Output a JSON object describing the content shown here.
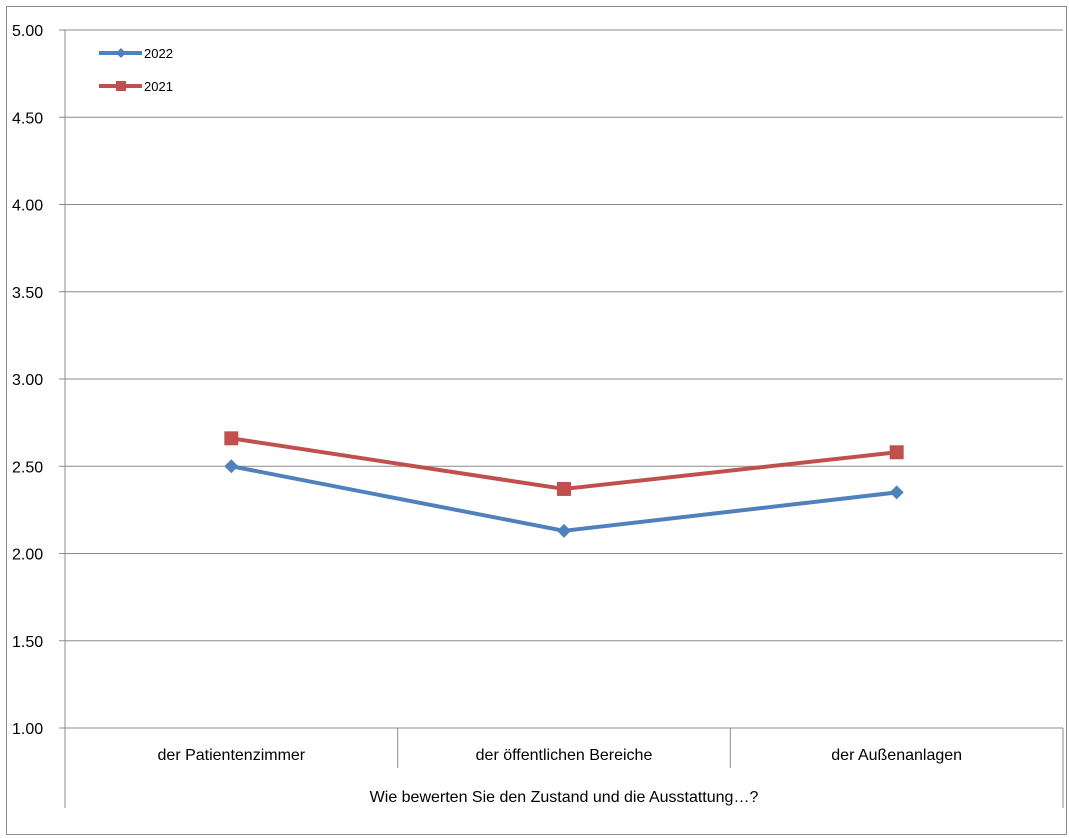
{
  "chart_data": {
    "type": "line",
    "categories": [
      "der Patientenzimmer",
      "der öffentlichen Bereiche",
      "der Außenanlagen"
    ],
    "group_label": "Wie bewerten Sie den Zustand und die Ausstattung…?",
    "ylim": [
      1.0,
      5.0
    ],
    "yticks": [
      "1.00",
      "1.50",
      "2.00",
      "2.50",
      "3.00",
      "3.50",
      "4.00",
      "4.50",
      "5.00"
    ],
    "grid": true,
    "legend_position": "top-left",
    "series": [
      {
        "name": "2022",
        "values": [
          2.5,
          2.13,
          2.35
        ],
        "color": "#4F81BD",
        "marker": "diamond"
      },
      {
        "name": "2021",
        "values": [
          2.66,
          2.37,
          2.58
        ],
        "color": "#C0504D",
        "marker": "square"
      }
    ]
  }
}
